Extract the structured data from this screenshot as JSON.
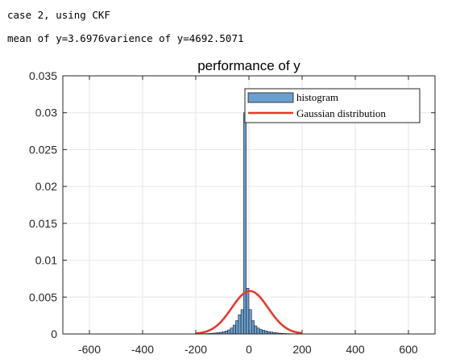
{
  "console": {
    "line1": "case 2, using CKF",
    "line2": "mean of y=3.6976varience of y=4692.5071"
  },
  "colors": {
    "bar_fill": "#6a9fd0",
    "bar_edge": "#1a1a1a",
    "gaussian": "#e8392b",
    "grid": "#e6e6e6",
    "axis": "#262626"
  },
  "chart_data": {
    "type": "bar",
    "title": "performance of y",
    "xlabel": "",
    "ylabel": "",
    "xlim": [
      -700,
      700
    ],
    "ylim": [
      0,
      0.035
    ],
    "xticks": [
      -600,
      -400,
      -200,
      0,
      200,
      400,
      600
    ],
    "xtick_labels": [
      "-600",
      "-400",
      "-200",
      "0",
      "200",
      "400",
      "600"
    ],
    "yticks": [
      0,
      0.005,
      0.01,
      0.015,
      0.02,
      0.025,
      0.03,
      0.035
    ],
    "ytick_labels": [
      "0",
      "0.005",
      "0.01",
      "0.015",
      "0.02",
      "0.025",
      "0.03",
      "0.035"
    ],
    "grid": true,
    "legend": {
      "location": "top-right",
      "entries": [
        "histogram",
        "Gaussian distribution"
      ]
    },
    "series": [
      {
        "name": "histogram",
        "kind": "histogram",
        "bin_width": 10,
        "bin_edges_start": -200,
        "values": [
          1e-05,
          2e-05,
          3e-05,
          4e-05,
          5e-05,
          7e-05,
          0.0001,
          0.00013,
          0.00017,
          0.00022,
          0.0003,
          0.0004,
          0.00055,
          0.0008,
          0.0012,
          0.0018,
          0.0026,
          0.0033,
          0.03,
          0.0062,
          0.0033,
          0.0018,
          0.0011,
          0.0008,
          0.0006,
          0.0005,
          0.0004,
          0.0003,
          0.00025,
          0.0002,
          0.00015,
          0.0001,
          8e-05,
          6e-05,
          5e-05,
          4e-05,
          3e-05,
          2e-05,
          1e-05,
          1e-05,
          0.0,
          0.0,
          0.0,
          0.0,
          0.0,
          0.0,
          0.0,
          0.0,
          2e-05,
          2e-05
        ]
      },
      {
        "name": "Gaussian distribution",
        "kind": "line",
        "mean": 3.6976,
        "variance": 4692.5071,
        "x_range": [
          -200,
          200
        ]
      }
    ]
  }
}
